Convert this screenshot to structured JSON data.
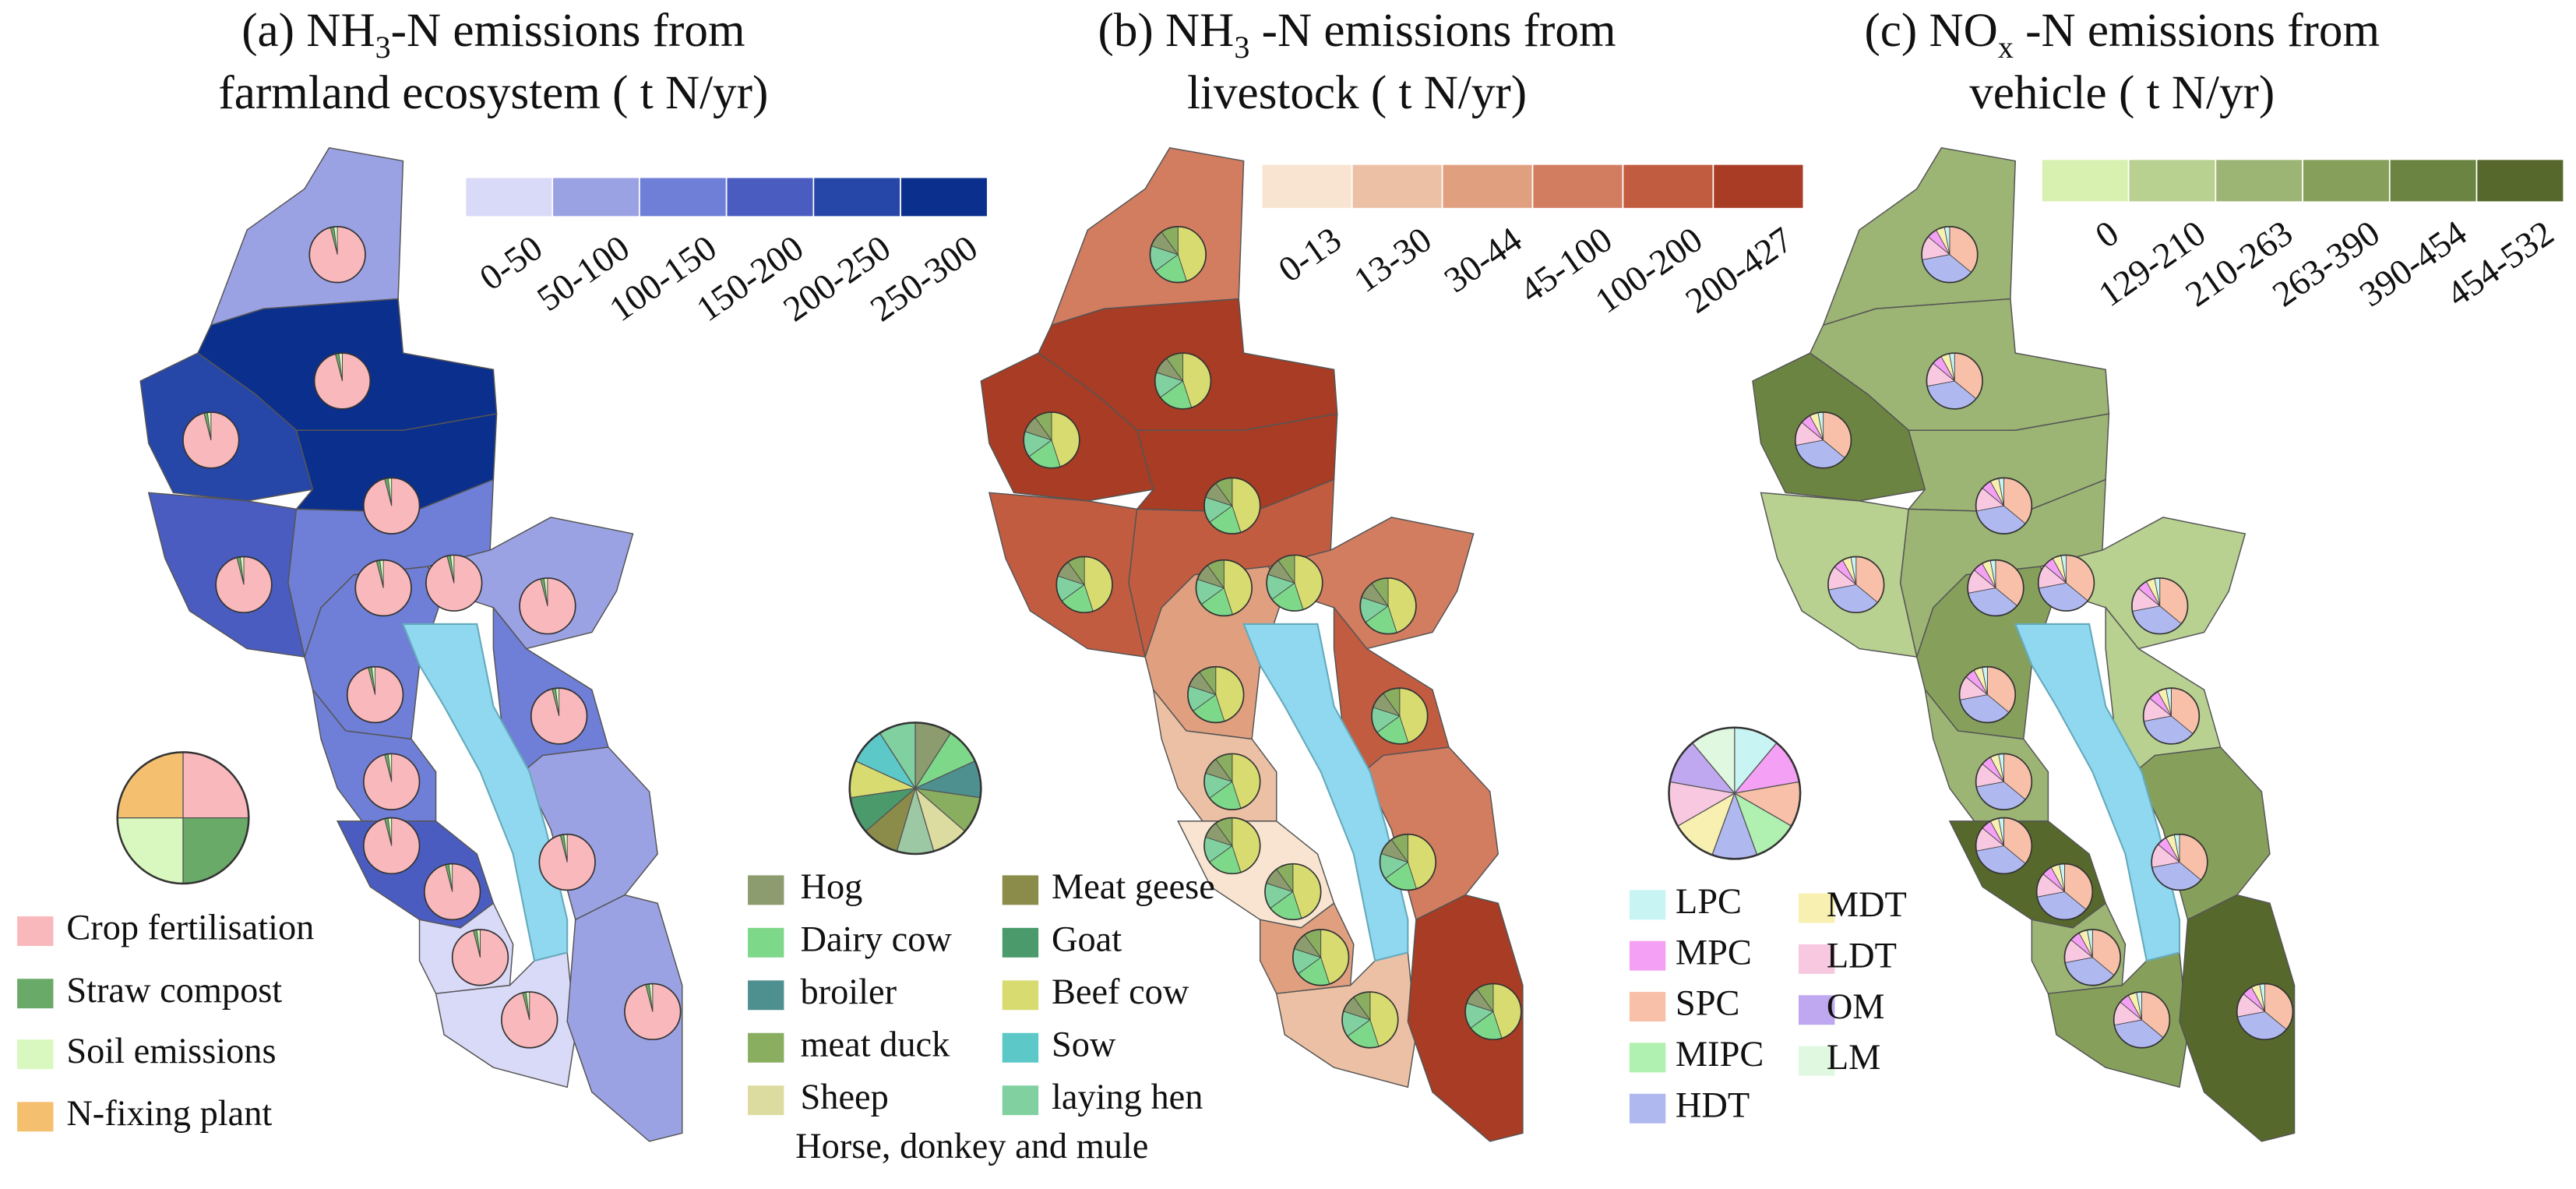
{
  "panels": [
    {
      "title": {
        "line1": [
          "(a) NH",
          "3",
          "-N emissions from"
        ],
        "line2": "farmland ecosystem ( t N/yr)"
      },
      "color_classes": [
        {
          "label": "0-50",
          "color": "#d9d9f8"
        },
        {
          "label": "50-100",
          "color": "#9ba2e4"
        },
        {
          "label": "100-150",
          "color": "#6f7ed6"
        },
        {
          "label": "150-200",
          "color": "#4a5cc0"
        },
        {
          "label": "200-250",
          "color": "#2646a8"
        },
        {
          "label": "250-300",
          "color": "#0b2f8c"
        }
      ],
      "pie_legend": [
        {
          "label": "Crop fertilisation",
          "color": "#f9b8bc"
        },
        {
          "label": "Straw compost",
          "color": "#6aaa68"
        },
        {
          "label": "Soil emissions",
          "color": "#d8f8c0"
        },
        {
          "label": "N-fixing plant",
          "color": "#f4c070"
        }
      ]
    },
    {
      "title": {
        "line1": [
          "(b) NH",
          "3",
          " -N emissions from"
        ],
        "line2": "livestock  ( t N/yr)"
      },
      "color_classes": [
        {
          "label": "0-13",
          "color": "#f8e4d0"
        },
        {
          "label": "13-30",
          "color": "#ecc0a4"
        },
        {
          "label": "30-44",
          "color": "#e0a080"
        },
        {
          "label": "45-100",
          "color": "#d27c60"
        },
        {
          "label": "100-200",
          "color": "#c25c40"
        },
        {
          "label": "200-427",
          "color": "#a83c24"
        }
      ],
      "pie_legend": [
        {
          "label": "Hog",
          "color": "#8c9c6e"
        },
        {
          "label": "Dairy cow",
          "color": "#7ed88a"
        },
        {
          "label": "broiler",
          "color": "#4e9090"
        },
        {
          "label": "meat duck",
          "color": "#8aae60"
        },
        {
          "label": "Sheep",
          "color": "#dcdca0"
        },
        {
          "label": "Horse, donkey and mule",
          "color": "#9cc8a4"
        },
        {
          "label": "Meat geese",
          "color": "#8c8c4a"
        },
        {
          "label": "Goat",
          "color": "#4a9a6c"
        },
        {
          "label": "Beef cow",
          "color": "#d8dc70"
        },
        {
          "label": "Sow",
          "color": "#5cc8c8"
        },
        {
          "label": "laying hen",
          "color": "#80d0a0"
        }
      ]
    },
    {
      "title": {
        "line1": [
          "(c) NO",
          "x",
          " -N emissions from"
        ],
        "line2": "vehicle ( t N/yr)"
      },
      "color_classes": [
        {
          "label": "0",
          "color": "#d8f0b0"
        },
        {
          "label": "129-210",
          "color": "#b8d090"
        },
        {
          "label": "210-263",
          "color": "#9cb474"
        },
        {
          "label": "263-390",
          "color": "#86a05c"
        },
        {
          "label": "390-454",
          "color": "#6c8442"
        },
        {
          "label": "454-532",
          "color": "#56682c"
        }
      ],
      "pie_legend": [
        {
          "label": "LPC",
          "color": "#c8f4f4"
        },
        {
          "label": "MPC",
          "color": "#f4a0f4"
        },
        {
          "label": "SPC",
          "color": "#f8c0a8"
        },
        {
          "label": "MIPC",
          "color": "#b0f0b0"
        },
        {
          "label": "HDT",
          "color": "#b0b8f0"
        },
        {
          "label": "MDT",
          "color": "#f8f0b0"
        },
        {
          "label": "LDT",
          "color": "#f8c8e0"
        },
        {
          "label": "OM",
          "color": "#c0a8f0"
        },
        {
          "label": "LM",
          "color": "#e0f8e0"
        }
      ]
    }
  ]
}
